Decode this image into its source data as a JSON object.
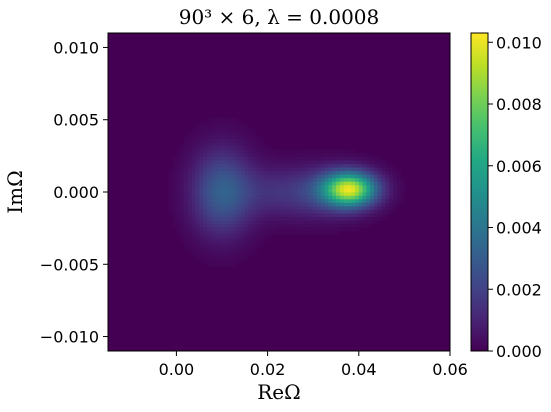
{
  "chart_data": {
    "type": "heatmap",
    "title": "90³ × 6, λ = 0.0008",
    "xlabel": "ReΩ",
    "ylabel": "ImΩ",
    "xlim": [
      -0.015,
      0.06
    ],
    "ylim": [
      -0.011,
      0.011
    ],
    "x_ticks": [
      0.0,
      0.02,
      0.04,
      0.06
    ],
    "x_tick_labels": [
      "0.00",
      "0.02",
      "0.04",
      "0.06"
    ],
    "y_ticks": [
      -0.01,
      -0.005,
      0.0,
      0.005,
      0.01
    ],
    "y_tick_labels": [
      "−0.010",
      "−0.005",
      "0.000",
      "0.005",
      "0.010"
    ],
    "colorbar": {
      "range": [
        0.0,
        0.0103
      ],
      "ticks": [
        0.0,
        0.002,
        0.004,
        0.006,
        0.008,
        0.01
      ],
      "tick_labels": [
        "0.000",
        "0.002",
        "0.004",
        "0.006",
        "0.008",
        "0.010"
      ],
      "colormap": "viridis"
    },
    "density_components": [
      {
        "center_re": 0.01,
        "center_im": 0.0,
        "sigma_re": 0.0045,
        "sigma_im": 0.002,
        "peak": 0.003
      },
      {
        "center_re": 0.022,
        "center_im": 0.0,
        "sigma_re": 0.007,
        "sigma_im": 0.0012,
        "peak": 0.0012
      },
      {
        "center_re": 0.038,
        "center_im": 0.0002,
        "sigma_re": 0.004,
        "sigma_im": 0.0008,
        "peak": 0.009
      },
      {
        "center_re": 0.033,
        "center_im": 0.0,
        "sigma_re": 0.006,
        "sigma_im": 0.0012,
        "peak": 0.0015
      }
    ]
  }
}
